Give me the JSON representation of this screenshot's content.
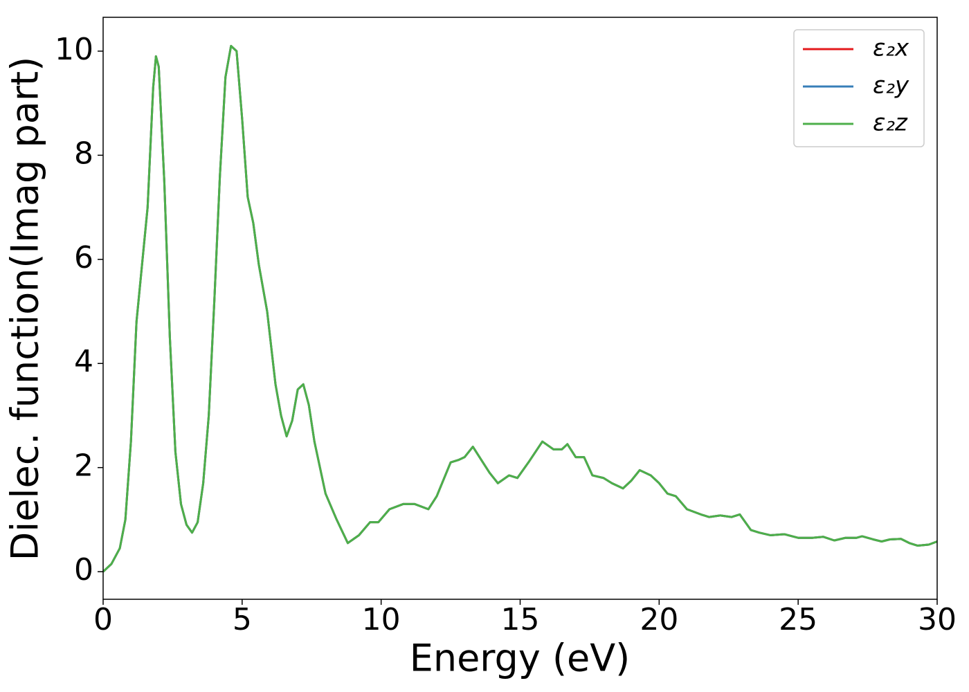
{
  "chart_data": {
    "type": "line",
    "xlabel": "Energy (eV)",
    "ylabel": "Dielec. function(Imag part)",
    "x": [
      0,
      0.3,
      0.6,
      0.8,
      1.0,
      1.2,
      1.4,
      1.6,
      1.8,
      1.9,
      2.0,
      2.2,
      2.4,
      2.6,
      2.8,
      3.0,
      3.2,
      3.4,
      3.6,
      3.8,
      4.0,
      4.2,
      4.4,
      4.6,
      4.8,
      5.0,
      5.2,
      5.4,
      5.6,
      5.9,
      6.2,
      6.4,
      6.6,
      6.8,
      7.0,
      7.2,
      7.4,
      7.6,
      8.0,
      8.4,
      8.8,
      9.2,
      9.6,
      9.9,
      10.3,
      10.8,
      11.2,
      11.7,
      12.0,
      12.5,
      12.8,
      13.0,
      13.3,
      13.6,
      13.9,
      14.2,
      14.6,
      14.9,
      15.3,
      15.8,
      16.2,
      16.5,
      16.7,
      17.0,
      17.3,
      17.6,
      18.0,
      18.3,
      18.7,
      19.0,
      19.3,
      19.7,
      20.0,
      20.3,
      20.6,
      21.0,
      21.5,
      21.8,
      22.2,
      22.6,
      22.9,
      23.3,
      23.6,
      24.0,
      24.5,
      25.0,
      25.5,
      25.9,
      26.3,
      26.7,
      27.1,
      27.3,
      27.7,
      28.0,
      28.3,
      28.7,
      29.0,
      29.3,
      29.7,
      30
    ],
    "series": [
      {
        "name": "ε₂x",
        "color": "#e41a1c",
        "values": [
          0,
          0.15,
          0.45,
          1.0,
          2.5,
          4.8,
          5.9,
          7.0,
          9.3,
          9.9,
          9.7,
          7.5,
          4.5,
          2.3,
          1.3,
          0.9,
          0.75,
          0.95,
          1.7,
          3.0,
          5.2,
          7.6,
          9.5,
          10.1,
          10.0,
          8.7,
          7.2,
          6.7,
          5.9,
          5.0,
          3.6,
          3.0,
          2.6,
          2.9,
          3.5,
          3.6,
          3.2,
          2.5,
          1.5,
          1.0,
          0.55,
          0.7,
          0.95,
          0.95,
          1.2,
          1.3,
          1.3,
          1.2,
          1.45,
          2.1,
          2.15,
          2.2,
          2.4,
          2.15,
          1.9,
          1.7,
          1.85,
          1.8,
          2.1,
          2.5,
          2.35,
          2.35,
          2.45,
          2.2,
          2.2,
          1.85,
          1.8,
          1.7,
          1.6,
          1.75,
          1.95,
          1.85,
          1.7,
          1.5,
          1.45,
          1.2,
          1.1,
          1.05,
          1.08,
          1.05,
          1.1,
          0.8,
          0.75,
          0.7,
          0.72,
          0.65,
          0.65,
          0.67,
          0.6,
          0.65,
          0.65,
          0.68,
          0.62,
          0.58,
          0.62,
          0.63,
          0.55,
          0.5,
          0.52,
          0.58
        ]
      },
      {
        "name": "ε₂y",
        "color": "#377eb8",
        "values": [
          0,
          0.15,
          0.45,
          1.0,
          2.5,
          4.8,
          5.9,
          7.0,
          9.3,
          9.9,
          9.7,
          7.5,
          4.5,
          2.3,
          1.3,
          0.9,
          0.75,
          0.95,
          1.7,
          3.0,
          5.2,
          7.6,
          9.5,
          10.1,
          10.0,
          8.7,
          7.2,
          6.7,
          5.9,
          5.0,
          3.6,
          3.0,
          2.6,
          2.9,
          3.5,
          3.6,
          3.2,
          2.5,
          1.5,
          1.0,
          0.55,
          0.7,
          0.95,
          0.95,
          1.2,
          1.3,
          1.3,
          1.2,
          1.45,
          2.1,
          2.15,
          2.2,
          2.4,
          2.15,
          1.9,
          1.7,
          1.85,
          1.8,
          2.1,
          2.5,
          2.35,
          2.35,
          2.45,
          2.2,
          2.2,
          1.85,
          1.8,
          1.7,
          1.6,
          1.75,
          1.95,
          1.85,
          1.7,
          1.5,
          1.45,
          1.2,
          1.1,
          1.05,
          1.08,
          1.05,
          1.1,
          0.8,
          0.75,
          0.7,
          0.72,
          0.65,
          0.65,
          0.67,
          0.6,
          0.65,
          0.65,
          0.68,
          0.62,
          0.58,
          0.62,
          0.63,
          0.55,
          0.5,
          0.52,
          0.58
        ]
      },
      {
        "name": "ε₂z",
        "color": "#4daf4a",
        "values": [
          0,
          0.15,
          0.45,
          1.0,
          2.5,
          4.8,
          5.9,
          7.0,
          9.3,
          9.9,
          9.7,
          7.5,
          4.5,
          2.3,
          1.3,
          0.9,
          0.75,
          0.95,
          1.7,
          3.0,
          5.2,
          7.6,
          9.5,
          10.1,
          10.0,
          8.7,
          7.2,
          6.7,
          5.9,
          5.0,
          3.6,
          3.0,
          2.6,
          2.9,
          3.5,
          3.6,
          3.2,
          2.5,
          1.5,
          1.0,
          0.55,
          0.7,
          0.95,
          0.95,
          1.2,
          1.3,
          1.3,
          1.2,
          1.45,
          2.1,
          2.15,
          2.2,
          2.4,
          2.15,
          1.9,
          1.7,
          1.85,
          1.8,
          2.1,
          2.5,
          2.35,
          2.35,
          2.45,
          2.2,
          2.2,
          1.85,
          1.8,
          1.7,
          1.6,
          1.75,
          1.95,
          1.85,
          1.7,
          1.5,
          1.45,
          1.2,
          1.1,
          1.05,
          1.08,
          1.05,
          1.1,
          0.8,
          0.75,
          0.7,
          0.72,
          0.65,
          0.65,
          0.67,
          0.6,
          0.65,
          0.65,
          0.68,
          0.62,
          0.58,
          0.62,
          0.63,
          0.55,
          0.5,
          0.52,
          0.58
        ]
      }
    ],
    "xlim": [
      0,
      30
    ],
    "xticks": [
      0,
      5,
      10,
      15,
      20,
      25,
      30
    ],
    "ylim": [
      -0.53,
      10.65
    ],
    "yticks": [
      0,
      2,
      4,
      6,
      8,
      10
    ],
    "grid": false,
    "legend": "upper right"
  }
}
